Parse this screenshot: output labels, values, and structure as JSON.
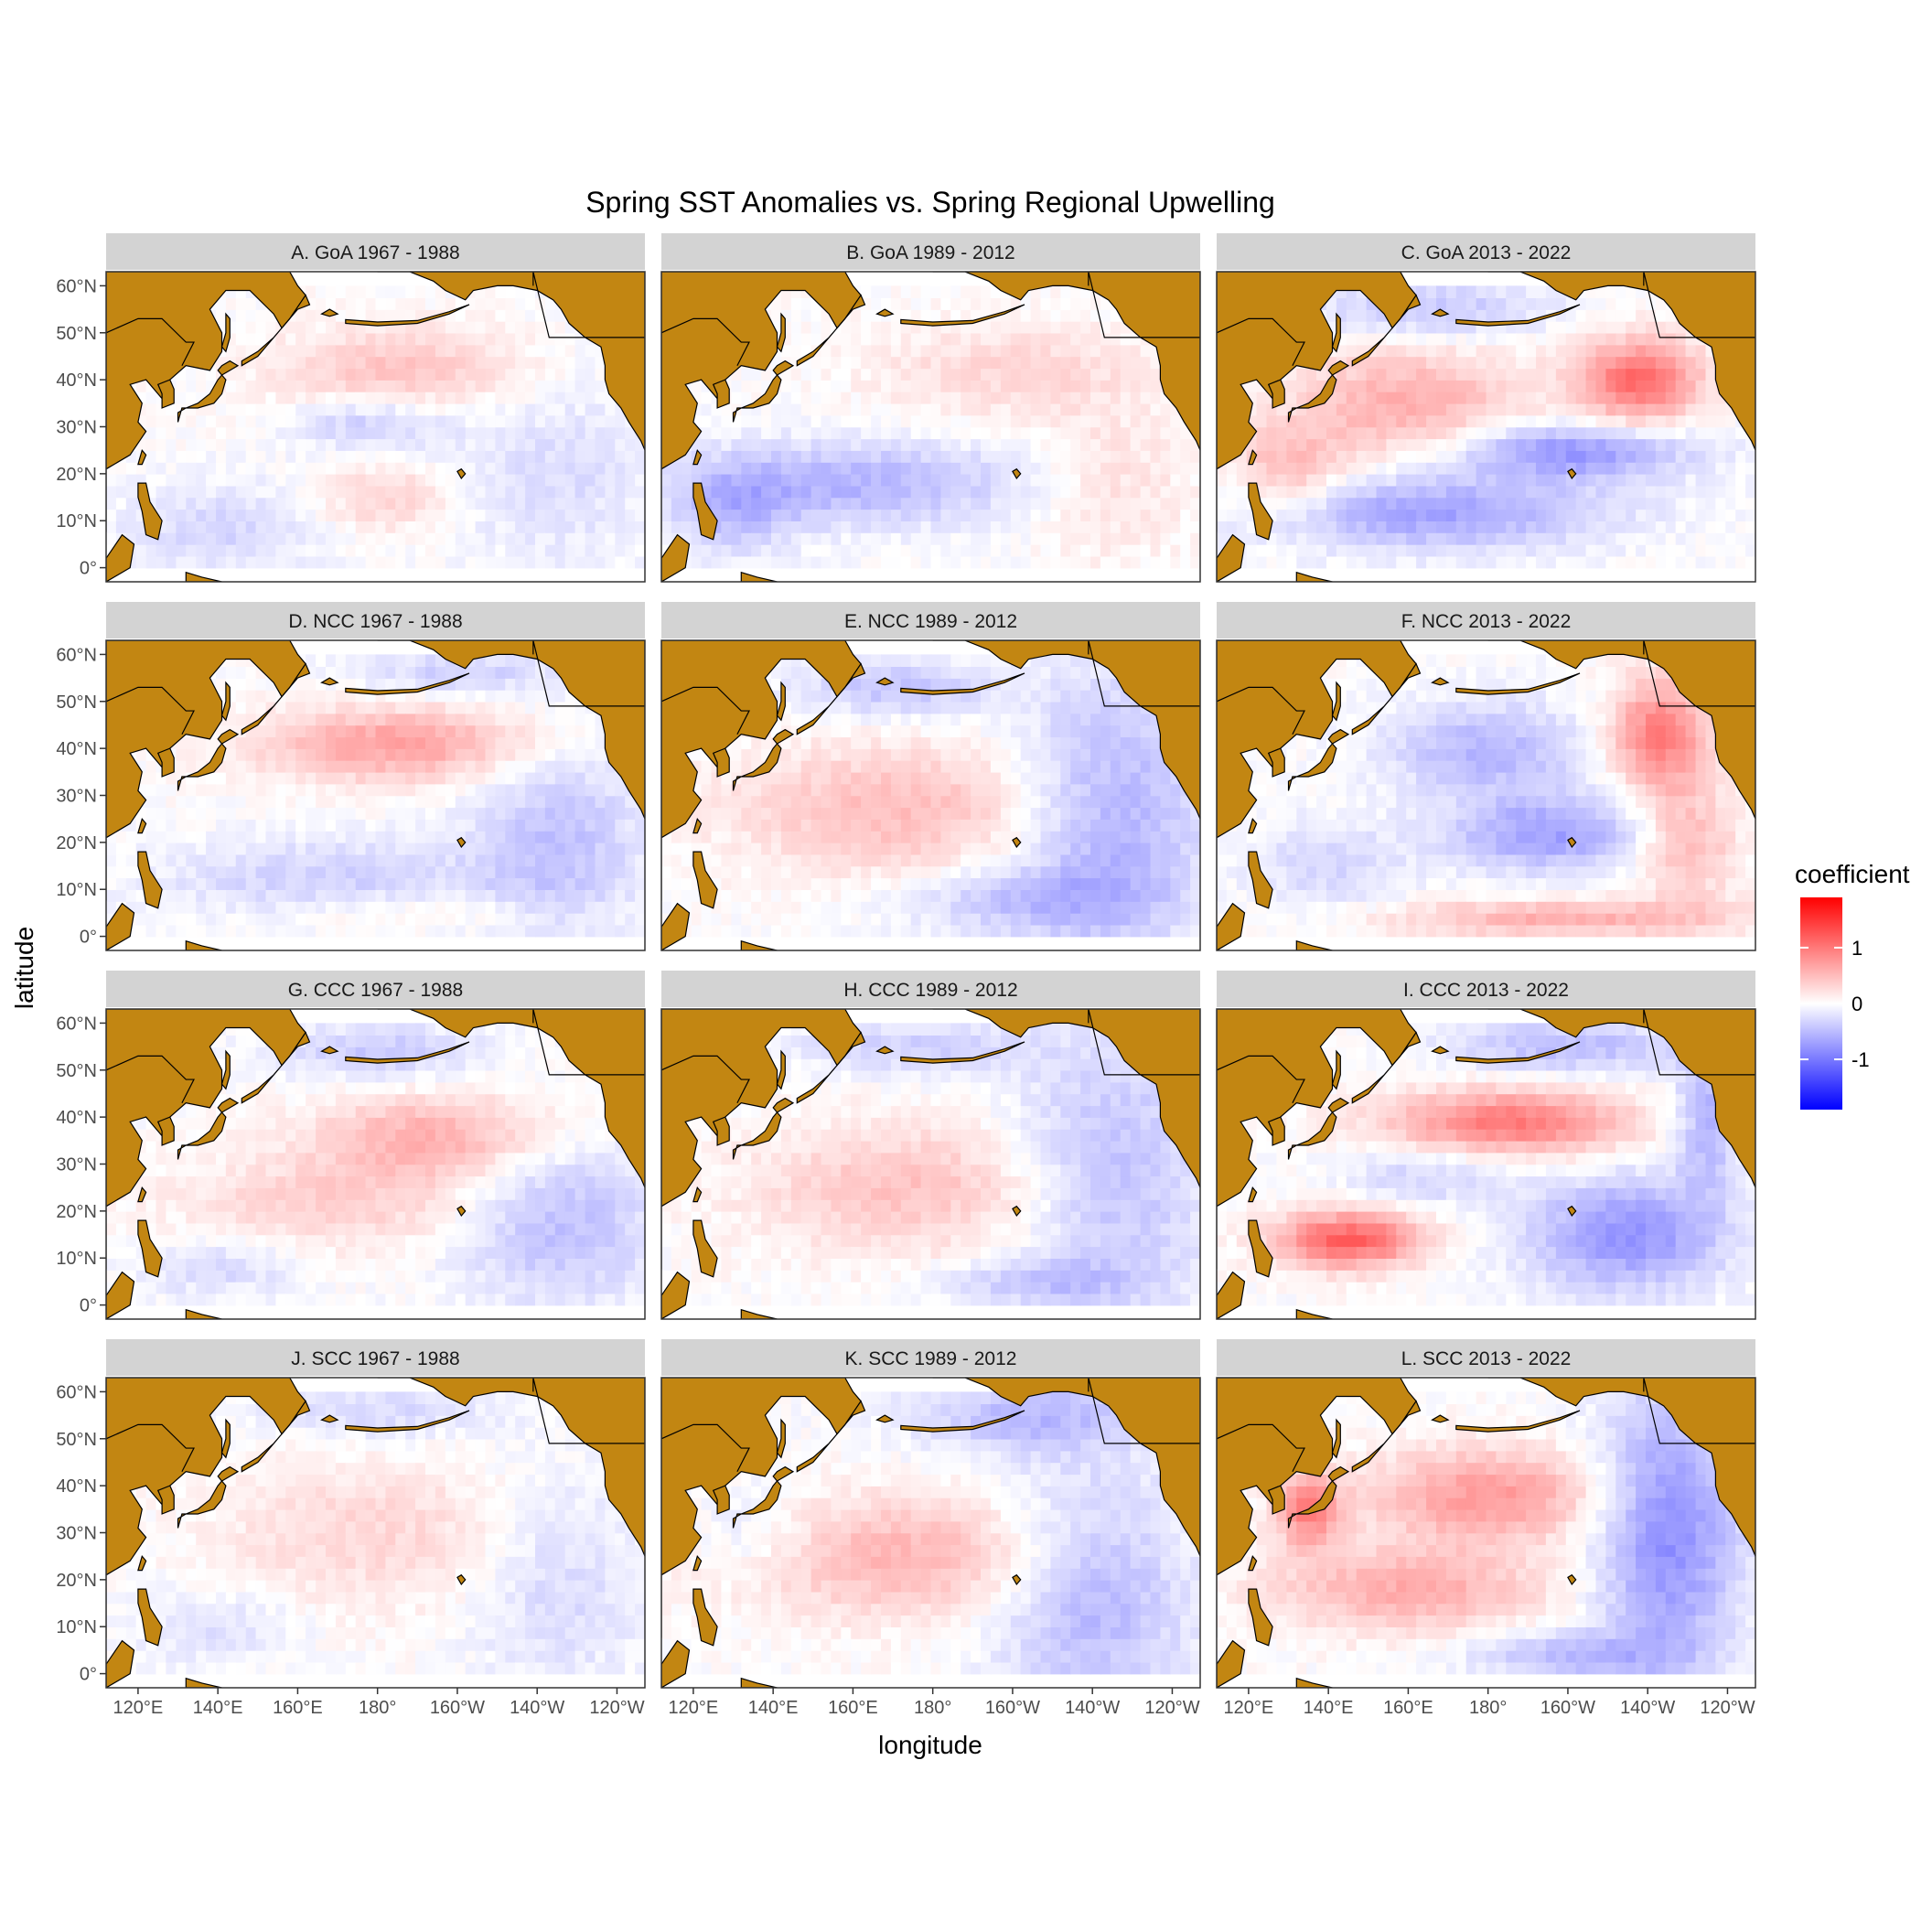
{
  "chart_data": {
    "type": "heatmap",
    "title": "Spring SST Anomalies vs. Spring Regional Upwelling",
    "xlabel": "longitude",
    "ylabel": "latitude",
    "x_ticks": [
      "120°E",
      "140°E",
      "160°E",
      "180°",
      "160°W",
      "140°W",
      "120°W"
    ],
    "y_ticks": [
      "60°N",
      "50°N",
      "40°N",
      "30°N",
      "20°N",
      "10°N",
      "0°"
    ],
    "legend": {
      "title": "coefficient",
      "placement": "right",
      "ticks": [
        "1",
        "0",
        "-1"
      ],
      "tick_values": [
        1,
        0,
        -1
      ],
      "range": [
        -1.9,
        1.9
      ],
      "low_color": "#0000ff",
      "mid_color": "#ffffff",
      "high_color": "#ff0000"
    },
    "land_color": "#c28612",
    "strip_color": "#d3d3d3",
    "panels": [
      {
        "label": "A. GoA 1967 - 1988",
        "blobs": [
          {
            "lon": 185,
            "lat": 42,
            "rx": 32,
            "ry": 9,
            "v": 0.45
          },
          {
            "lon": 178,
            "lat": 31,
            "rx": 20,
            "ry": 6,
            "v": -0.4
          },
          {
            "lon": 182,
            "lat": 15,
            "rx": 16,
            "ry": 7,
            "v": 0.35
          },
          {
            "lon": 140,
            "lat": 8,
            "rx": 25,
            "ry": 10,
            "v": -0.3
          },
          {
            "lon": 225,
            "lat": 20,
            "rx": 25,
            "ry": 20,
            "v": -0.25
          }
        ]
      },
      {
        "label": "B. GoA 1989 - 2012",
        "blobs": [
          {
            "lon": 200,
            "lat": 42,
            "rx": 35,
            "ry": 10,
            "v": 0.3
          },
          {
            "lon": 160,
            "lat": 18,
            "rx": 45,
            "ry": 9,
            "v": -0.55
          },
          {
            "lon": 130,
            "lat": 12,
            "rx": 15,
            "ry": 10,
            "v": -0.4
          },
          {
            "lon": 225,
            "lat": 18,
            "rx": 20,
            "ry": 15,
            "v": 0.25
          }
        ]
      },
      {
        "label": "C. GoA 2013 - 2022",
        "blobs": [
          {
            "lon": 218,
            "lat": 40,
            "rx": 15,
            "ry": 9,
            "v": 1.1
          },
          {
            "lon": 160,
            "lat": 35,
            "rx": 30,
            "ry": 12,
            "v": 0.6
          },
          {
            "lon": 200,
            "lat": 25,
            "rx": 30,
            "ry": 6,
            "v": -0.8
          },
          {
            "lon": 165,
            "lat": 12,
            "rx": 45,
            "ry": 8,
            "v": -0.7
          },
          {
            "lon": 130,
            "lat": 20,
            "rx": 15,
            "ry": 10,
            "v": 0.5
          },
          {
            "lon": 165,
            "lat": 55,
            "rx": 30,
            "ry": 6,
            "v": -0.45
          }
        ]
      },
      {
        "label": "D. NCC 1967 - 1988",
        "blobs": [
          {
            "lon": 185,
            "lat": 41,
            "rx": 35,
            "ry": 8,
            "v": 0.7
          },
          {
            "lon": 165,
            "lat": 12,
            "rx": 40,
            "ry": 9,
            "v": -0.35
          },
          {
            "lon": 225,
            "lat": 20,
            "rx": 22,
            "ry": 22,
            "v": -0.45
          },
          {
            "lon": 190,
            "lat": 5,
            "rx": 40,
            "ry": 4,
            "v": 0.2
          },
          {
            "lon": 200,
            "lat": 56,
            "rx": 25,
            "ry": 5,
            "v": -0.35
          }
        ]
      },
      {
        "label": "E. NCC 1989 - 2012",
        "blobs": [
          {
            "lon": 172,
            "lat": 27,
            "rx": 42,
            "ry": 14,
            "v": 0.5
          },
          {
            "lon": 225,
            "lat": 25,
            "rx": 25,
            "ry": 30,
            "v": -0.6
          },
          {
            "lon": 170,
            "lat": 53,
            "rx": 25,
            "ry": 6,
            "v": -0.45
          },
          {
            "lon": 200,
            "lat": 8,
            "rx": 30,
            "ry": 7,
            "v": -0.4
          }
        ]
      },
      {
        "label": "F. NCC 2013 - 2022",
        "blobs": [
          {
            "lon": 223,
            "lat": 43,
            "rx": 12,
            "ry": 12,
            "v": 1.0
          },
          {
            "lon": 180,
            "lat": 40,
            "rx": 25,
            "ry": 10,
            "v": -0.55
          },
          {
            "lon": 195,
            "lat": 22,
            "rx": 25,
            "ry": 8,
            "v": -0.7
          },
          {
            "lon": 200,
            "lat": 4,
            "rx": 45,
            "ry": 4,
            "v": 0.6
          },
          {
            "lon": 140,
            "lat": 15,
            "rx": 20,
            "ry": 10,
            "v": -0.3
          },
          {
            "lon": 230,
            "lat": 20,
            "rx": 12,
            "ry": 12,
            "v": 0.55
          }
        ]
      },
      {
        "label": "G. CCC 1967 - 1988",
        "blobs": [
          {
            "lon": 195,
            "lat": 36,
            "rx": 30,
            "ry": 9,
            "v": 0.6
          },
          {
            "lon": 170,
            "lat": 22,
            "rx": 40,
            "ry": 10,
            "v": 0.35
          },
          {
            "lon": 225,
            "lat": 18,
            "rx": 25,
            "ry": 18,
            "v": -0.5
          },
          {
            "lon": 180,
            "lat": 54,
            "rx": 25,
            "ry": 6,
            "v": -0.4
          },
          {
            "lon": 140,
            "lat": 8,
            "rx": 20,
            "ry": 6,
            "v": -0.3
          }
        ]
      },
      {
        "label": "H. CCC 1989 - 2012",
        "blobs": [
          {
            "lon": 175,
            "lat": 25,
            "rx": 40,
            "ry": 14,
            "v": 0.45
          },
          {
            "lon": 225,
            "lat": 28,
            "rx": 25,
            "ry": 30,
            "v": -0.5
          },
          {
            "lon": 175,
            "lat": 55,
            "rx": 30,
            "ry": 6,
            "v": -0.35
          },
          {
            "lon": 205,
            "lat": 5,
            "rx": 25,
            "ry": 5,
            "v": -0.35
          }
        ]
      },
      {
        "label": "I. CCC 2013 - 2022",
        "blobs": [
          {
            "lon": 185,
            "lat": 39,
            "rx": 30,
            "ry": 7,
            "v": 1.0
          },
          {
            "lon": 145,
            "lat": 14,
            "rx": 18,
            "ry": 6,
            "v": 1.2
          },
          {
            "lon": 215,
            "lat": 15,
            "rx": 25,
            "ry": 12,
            "v": -0.8
          },
          {
            "lon": 200,
            "lat": 55,
            "rx": 30,
            "ry": 6,
            "v": -0.5
          },
          {
            "lon": 165,
            "lat": 28,
            "rx": 20,
            "ry": 6,
            "v": -0.35
          },
          {
            "lon": 235,
            "lat": 40,
            "rx": 8,
            "ry": 15,
            "v": -0.6
          }
        ]
      },
      {
        "label": "J. SCC 1967 - 1988",
        "blobs": [
          {
            "lon": 180,
            "lat": 30,
            "rx": 40,
            "ry": 16,
            "v": 0.3
          },
          {
            "lon": 225,
            "lat": 20,
            "rx": 22,
            "ry": 22,
            "v": -0.3
          },
          {
            "lon": 180,
            "lat": 56,
            "rx": 30,
            "ry": 6,
            "v": -0.3
          },
          {
            "lon": 140,
            "lat": 10,
            "rx": 20,
            "ry": 8,
            "v": -0.25
          }
        ]
      },
      {
        "label": "K. SCC 1989 - 2012",
        "blobs": [
          {
            "lon": 175,
            "lat": 25,
            "rx": 45,
            "ry": 13,
            "v": 0.55
          },
          {
            "lon": 220,
            "lat": 18,
            "rx": 25,
            "ry": 25,
            "v": -0.6
          },
          {
            "lon": 205,
            "lat": 55,
            "rx": 30,
            "ry": 8,
            "v": -0.5
          },
          {
            "lon": 135,
            "lat": 30,
            "rx": 15,
            "ry": 10,
            "v": -0.25
          }
        ]
      },
      {
        "label": "L. SCC 2013 - 2022",
        "blobs": [
          {
            "lon": 180,
            "lat": 38,
            "rx": 30,
            "ry": 10,
            "v": 0.75
          },
          {
            "lon": 160,
            "lat": 18,
            "rx": 35,
            "ry": 9,
            "v": 0.6
          },
          {
            "lon": 225,
            "lat": 30,
            "rx": 18,
            "ry": 30,
            "v": -0.85
          },
          {
            "lon": 200,
            "lat": 4,
            "rx": 25,
            "ry": 5,
            "v": -0.5
          },
          {
            "lon": 135,
            "lat": 35,
            "rx": 8,
            "ry": 8,
            "v": 0.9
          }
        ]
      }
    ]
  }
}
